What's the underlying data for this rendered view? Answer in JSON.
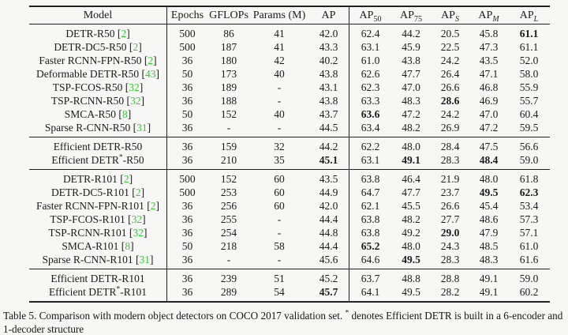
{
  "colors": {
    "citation": "#32cd32",
    "rule": "#222222",
    "text": "#1b1b1b",
    "background": "#f7f7f6"
  },
  "table": {
    "headers": [
      {
        "t": "Model"
      },
      {
        "t": "Epochs"
      },
      {
        "t": "GFLOPs"
      },
      {
        "t": "Params (M)"
      },
      {
        "t": "AP"
      },
      {
        "t": "AP",
        "sub": "50"
      },
      {
        "t": "AP",
        "sub": "75"
      },
      {
        "t": "AP",
        "sub": "S",
        "italic": true
      },
      {
        "t": "AP",
        "sub": "M",
        "italic": true
      },
      {
        "t": "AP",
        "sub": "L",
        "italic": true
      }
    ],
    "sections": [
      {
        "rows": [
          {
            "model": [
              {
                "t": "DETR-R50 ["
              },
              {
                "t": "2",
                "cite": true
              },
              {
                "t": "]"
              }
            ],
            "values": [
              "500",
              "86",
              "41",
              "42.0",
              "62.4",
              "44.2",
              "20.5",
              "45.8",
              "61.1"
            ],
            "bold": [
              8
            ]
          },
          {
            "model": [
              {
                "t": "DETR-DC5-R50 ["
              },
              {
                "t": "2",
                "cite": true
              },
              {
                "t": "]"
              }
            ],
            "values": [
              "500",
              "187",
              "41",
              "43.3",
              "63.1",
              "45.9",
              "22.5",
              "47.3",
              "61.1"
            ],
            "bold": []
          },
          {
            "model": [
              {
                "t": "Faster RCNN-FPN-R50 ["
              },
              {
                "t": "2",
                "cite": true
              },
              {
                "t": "]"
              }
            ],
            "values": [
              "36",
              "180",
              "42",
              "40.2",
              "61.0",
              "43.8",
              "24.2",
              "43.5",
              "52.0"
            ],
            "bold": []
          },
          {
            "model": [
              {
                "t": "Deformable DETR-R50 ["
              },
              {
                "t": "43",
                "cite": true
              },
              {
                "t": "]"
              }
            ],
            "values": [
              "50",
              "173",
              "40",
              "43.8",
              "62.6",
              "47.7",
              "26.4",
              "47.1",
              "58.0"
            ],
            "bold": []
          },
          {
            "model": [
              {
                "t": "TSP-FCOS-R50 ["
              },
              {
                "t": "32",
                "cite": true
              },
              {
                "t": "]"
              }
            ],
            "values": [
              "36",
              "189",
              "-",
              "43.1",
              "62.3",
              "47.0",
              "26.6",
              "46.8",
              "55.9"
            ],
            "bold": []
          },
          {
            "model": [
              {
                "t": "TSP-RCNN-R50 ["
              },
              {
                "t": "32",
                "cite": true
              },
              {
                "t": "]"
              }
            ],
            "values": [
              "36",
              "188",
              "-",
              "43.8",
              "63.3",
              "48.3",
              "28.6",
              "46.9",
              "55.7"
            ],
            "bold": [
              6
            ]
          },
          {
            "model": [
              {
                "t": "SMCA-R50 ["
              },
              {
                "t": "8",
                "cite": true
              },
              {
                "t": "]"
              }
            ],
            "values": [
              "50",
              "152",
              "40",
              "43.7",
              "63.6",
              "47.2",
              "24.2",
              "47.0",
              "60.4"
            ],
            "bold": [
              4
            ]
          },
          {
            "model": [
              {
                "t": "Sparse R-CNN-R50 ["
              },
              {
                "t": "31",
                "cite": true
              },
              {
                "t": "]"
              }
            ],
            "values": [
              "36",
              "-",
              "-",
              "44.5",
              "63.4",
              "48.2",
              "26.9",
              "47.2",
              "59.5"
            ],
            "bold": []
          }
        ]
      },
      {
        "rows": [
          {
            "model": [
              {
                "t": "Efficient DETR-R50"
              }
            ],
            "values": [
              "36",
              "159",
              "32",
              "44.2",
              "62.2",
              "48.0",
              "28.4",
              "47.5",
              "56.6"
            ],
            "bold": []
          },
          {
            "model": [
              {
                "t": "Efficient DETR"
              },
              {
                "t": "*",
                "sup": true
              },
              {
                "t": "-R50"
              }
            ],
            "values": [
              "36",
              "210",
              "35",
              "45.1",
              "63.1",
              "49.1",
              "28.3",
              "48.4",
              "59.0"
            ],
            "bold": [
              3,
              5,
              7
            ]
          }
        ]
      },
      {
        "rows": [
          {
            "model": [
              {
                "t": "DETR-R101 ["
              },
              {
                "t": "2",
                "cite": true
              },
              {
                "t": "]"
              }
            ],
            "values": [
              "500",
              "152",
              "60",
              "43.5",
              "63.8",
              "46.4",
              "21.9",
              "48.0",
              "61.8"
            ],
            "bold": []
          },
          {
            "model": [
              {
                "t": "DETR-DC5-R101 ["
              },
              {
                "t": "2",
                "cite": true
              },
              {
                "t": "]"
              }
            ],
            "values": [
              "500",
              "253",
              "60",
              "44.9",
              "64.7",
              "47.7",
              "23.7",
              "49.5",
              "62.3"
            ],
            "bold": [
              7,
              8
            ]
          },
          {
            "model": [
              {
                "t": "Faster RCNN-FPN-R101 ["
              },
              {
                "t": "2",
                "cite": true
              },
              {
                "t": "]"
              }
            ],
            "values": [
              "36",
              "256",
              "60",
              "42.0",
              "62.1",
              "45.5",
              "26.6",
              "45.4",
              "53.4"
            ],
            "bold": []
          },
          {
            "model": [
              {
                "t": "TSP-FCOS-R101 ["
              },
              {
                "t": "32",
                "cite": true
              },
              {
                "t": "]"
              }
            ],
            "values": [
              "36",
              "255",
              "-",
              "44.4",
              "63.8",
              "48.2",
              "27.7",
              "48.6",
              "57.3"
            ],
            "bold": []
          },
          {
            "model": [
              {
                "t": "TSP-RCNN-R101 ["
              },
              {
                "t": "32",
                "cite": true
              },
              {
                "t": "]"
              }
            ],
            "values": [
              "36",
              "254",
              "-",
              "44.8",
              "63.8",
              "49.2",
              "29.0",
              "47.9",
              "57.1"
            ],
            "bold": [
              6
            ]
          },
          {
            "model": [
              {
                "t": "SMCA-R101 ["
              },
              {
                "t": "8",
                "cite": true
              },
              {
                "t": "]"
              }
            ],
            "values": [
              "50",
              "218",
              "58",
              "44.4",
              "65.2",
              "48.0",
              "24.3",
              "48.5",
              "61.0"
            ],
            "bold": [
              4
            ]
          },
          {
            "model": [
              {
                "t": "Sparse R-CNN-R101 ["
              },
              {
                "t": "31",
                "cite": true
              },
              {
                "t": "]"
              }
            ],
            "values": [
              "36",
              "-",
              "-",
              "45.6",
              "64.6",
              "49.5",
              "28.3",
              "48.3",
              "61.6"
            ],
            "bold": [
              5
            ]
          }
        ]
      },
      {
        "rows": [
          {
            "model": [
              {
                "t": "Efficient DETR-R101"
              }
            ],
            "values": [
              "36",
              "239",
              "51",
              "45.2",
              "63.7",
              "48.8",
              "28.8",
              "49.1",
              "59.0"
            ],
            "bold": []
          },
          {
            "model": [
              {
                "t": "Efficient DETR"
              },
              {
                "t": "*",
                "sup": true
              },
              {
                "t": "-R101"
              }
            ],
            "values": [
              "36",
              "289",
              "54",
              "45.7",
              "64.1",
              "49.5",
              "28.2",
              "49.1",
              "60.2"
            ],
            "bold": [
              3
            ]
          }
        ]
      }
    ]
  },
  "caption": {
    "parts": [
      {
        "t": "Table 5. Comparison with modern object detectors on COCO 2017 validation set. "
      },
      {
        "t": "*",
        "sup": true
      },
      {
        "t": " denotes Efficient DETR is built in a 6-encoder and 1-decoder structure"
      }
    ]
  }
}
